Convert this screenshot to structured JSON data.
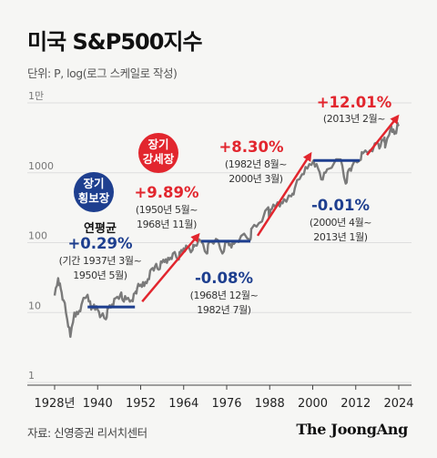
{
  "title": "미국 S&P500지수",
  "unit_note": "단위: P, log(로그 스케일로 작성)",
  "source": "자료: 신영증권 리서치센터",
  "brand": "The JoongAng",
  "colors": {
    "line": "#7a7a7a",
    "bull": "#e2262e",
    "bear": "#1e3f8f",
    "badge_blue": "#1e3f8f",
    "badge_red": "#e2262e"
  },
  "badges": {
    "bear": [
      "장기",
      "횡보장"
    ],
    "bull": [
      "장기",
      "강세장"
    ]
  },
  "avg_label": "연평균",
  "annotations": [
    {
      "kind": "flat",
      "rate": "+0.29%",
      "lines": [
        "(기간 1937년 3월~",
        "1950년 5월)"
      ]
    },
    {
      "kind": "up",
      "rate": "+9.89%",
      "lines": [
        "(1950년 5월~",
        "1968년 11월)"
      ]
    },
    {
      "kind": "flat",
      "rate": "-0.08%",
      "lines": [
        "(1968년 12월~",
        "1982년 7월)"
      ]
    },
    {
      "kind": "up",
      "rate": "+8.30%",
      "lines": [
        "(1982년 8월~",
        "2000년 3월)"
      ]
    },
    {
      "kind": "flat",
      "rate": "-0.01%",
      "lines": [
        "(2000년 4월~",
        "2013년 1월)"
      ]
    },
    {
      "kind": "up",
      "rate": "+12.01%",
      "lines": [
        "(2013년 2월~"
      ]
    }
  ],
  "chart_data": {
    "type": "line",
    "y_scale": "log",
    "ylim": [
      1,
      10000
    ],
    "xlim": [
      1928,
      2024
    ],
    "y_ticks": [
      "1",
      "10",
      "100",
      "1000",
      "1만"
    ],
    "x_ticks": [
      "1928년",
      "1940",
      "1952",
      "1964",
      "1976",
      "1988",
      "2000",
      "2012",
      "2024"
    ],
    "series": [
      {
        "x": [
          1928,
          1929,
          1929.7,
          1930.5,
          1931.5,
          1932.4,
          1933.5,
          1934.5,
          1935.5,
          1937.2,
          1938.2,
          1939,
          1940,
          1941,
          1942.3,
          1943,
          1944,
          1945,
          1946.4,
          1947,
          1948,
          1949.5,
          1950.4,
          1951,
          1952,
          1953,
          1954,
          1955,
          1956,
          1957,
          1958,
          1959,
          1960,
          1961,
          1962.5,
          1963,
          1964,
          1965,
          1966.5,
          1967,
          1968.9,
          1970.4,
          1971,
          1973,
          1974.8,
          1976,
          1977,
          1978,
          1980,
          1982.6,
          1983,
          1985,
          1987.6,
          1987.9,
          1989,
          1990.8,
          1992,
          1994,
          1995,
          1997,
          1998.5,
          2000.2,
          2001.5,
          2002.8,
          2004,
          2007.8,
          2009.2,
          2010,
          2011,
          2013.1,
          2014,
          2016,
          2018,
          2018.9,
          2020,
          2020.2,
          2021.9,
          2022.8,
          2023.5,
          2024
        ],
        "y": [
          17.5,
          31,
          22,
          15,
          8,
          4.5,
          10,
          9.5,
          13,
          18,
          11,
          13,
          11,
          9,
          8,
          11.5,
          13,
          16,
          18.5,
          15,
          15.5,
          15,
          19,
          22,
          25,
          24,
          30,
          42,
          46,
          41,
          52,
          58,
          57,
          70,
          57,
          70,
          83,
          87,
          79,
          92,
          104,
          70,
          100,
          113,
          70,
          102,
          95,
          96,
          125,
          110,
          160,
          190,
          320,
          230,
          350,
          330,
          420,
          460,
          600,
          950,
          1150,
          1500,
          1150,
          800,
          1120,
          1550,
          700,
          1100,
          1250,
          1500,
          1900,
          2100,
          2700,
          2400,
          3200,
          2300,
          4700,
          3600,
          4400,
          4950
        ]
      }
    ],
    "periods": [
      {
        "trend": "flat",
        "x": [
          1937.2,
          1950.4
        ],
        "level": 12,
        "avg_annual": "+0.29%"
      },
      {
        "trend": "up",
        "x": [
          1950.4,
          1968.9
        ],
        "avg_annual": "+9.89%"
      },
      {
        "trend": "flat",
        "x": [
          1968.9,
          1982.6
        ],
        "level": 105,
        "avg_annual": "-0.08%"
      },
      {
        "trend": "up",
        "x": [
          1982.6,
          2000.2
        ],
        "avg_annual": "+8.30%"
      },
      {
        "trend": "flat",
        "x": [
          2000.2,
          2013.1
        ],
        "level": 1500,
        "avg_annual": "-0.01%"
      },
      {
        "trend": "up",
        "x": [
          2013.1,
          2024
        ],
        "avg_annual": "+12.01%"
      }
    ]
  }
}
